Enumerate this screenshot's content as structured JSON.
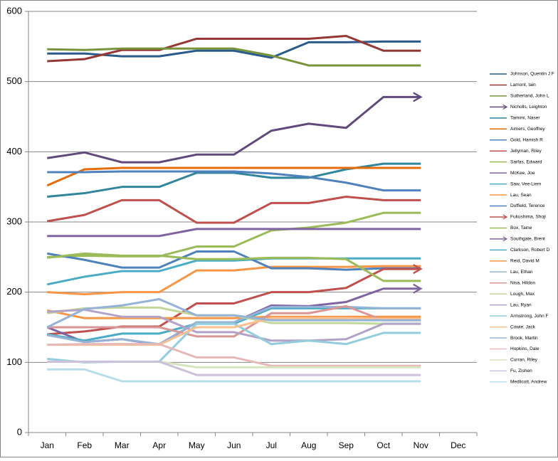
{
  "chart_data": {
    "type": "line",
    "categories": [
      "Jan",
      "Feb",
      "Mar",
      "Apr",
      "May",
      "Jun",
      "Jul",
      "Aug",
      "Sep",
      "Oct",
      "Nov",
      "Dec"
    ],
    "ylim": [
      0,
      600
    ],
    "yticks": [
      0,
      100,
      200,
      300,
      400,
      500,
      600
    ],
    "grid": true,
    "legend": "right",
    "series": [
      {
        "name": "Johnson, Quentin J F",
        "color": "#2a5b8c",
        "values": [
          540,
          540,
          536,
          536,
          544,
          544,
          534,
          556,
          556,
          557,
          557,
          null
        ]
      },
      {
        "name": "Lamont, Iain",
        "color": "#953735",
        "values": [
          529,
          532,
          545,
          545,
          561,
          561,
          561,
          561,
          565,
          544,
          544,
          null
        ]
      },
      {
        "name": "Sutherland, John L",
        "color": "#77933c",
        "values": [
          546,
          545,
          547,
          547,
          547,
          547,
          537,
          523,
          523,
          523,
          523,
          null
        ]
      },
      {
        "name": "Nicholls, Leighton",
        "color": "#604a7b",
        "marker_end": "arrow",
        "values": [
          391,
          399,
          385,
          385,
          396,
          396,
          430,
          440,
          434,
          478,
          478,
          null
        ]
      },
      {
        "name": "Tamimi, Naser",
        "color": "#31859c",
        "values": [
          336,
          341,
          350,
          350,
          370,
          370,
          363,
          363,
          375,
          383,
          383,
          null
        ]
      },
      {
        "name": "Aimers, Geoffrey",
        "color": "#e46c0a",
        "values": [
          352,
          375,
          377,
          377,
          377,
          377,
          377,
          377,
          377,
          377,
          377,
          null
        ]
      },
      {
        "name": "Gold, Hamish R",
        "color": "#4f81bd",
        "values": [
          371,
          371,
          372,
          372,
          372,
          372,
          369,
          364,
          356,
          345,
          345,
          null
        ]
      },
      {
        "name": "Jellyman, Riley",
        "color": "#c0504d",
        "values": [
          301,
          310,
          331,
          331,
          299,
          299,
          327,
          327,
          336,
          331,
          331,
          null
        ]
      },
      {
        "name": "Sarfas, Edward",
        "color": "#9bbb59",
        "values": [
          250,
          252,
          251,
          251,
          265,
          265,
          288,
          292,
          299,
          313,
          313,
          null
        ]
      },
      {
        "name": "McKee, Joe",
        "color": "#8064a2",
        "values": [
          280,
          280,
          280,
          280,
          290,
          290,
          290,
          290,
          290,
          290,
          290,
          null
        ]
      },
      {
        "name": "Saw, Vee-Liem",
        "color": "#4bacc6",
        "values": [
          211,
          222,
          230,
          230,
          245,
          245,
          248,
          248,
          248,
          248,
          248,
          null
        ]
      },
      {
        "name": "Lau, Sean",
        "color": "#f79646",
        "values": [
          200,
          197,
          200,
          200,
          231,
          231,
          236,
          236,
          236,
          237,
          237,
          null
        ]
      },
      {
        "name": "Duffield, Terence",
        "color": "#4f81bd",
        "values": [
          255,
          246,
          235,
          235,
          258,
          258,
          234,
          234,
          232,
          234,
          234,
          null
        ]
      },
      {
        "name": "Fukushima, Shoji",
        "color": "#c0504d",
        "marker_end": "arrow",
        "values": [
          140,
          144,
          151,
          151,
          184,
          184,
          200,
          200,
          206,
          233,
          233,
          null
        ]
      },
      {
        "name": "Box, Taine",
        "color": "#9bbb59",
        "values": [
          249,
          255,
          252,
          252,
          247,
          247,
          249,
          249,
          247,
          216,
          216,
          null
        ]
      },
      {
        "name": "Southgate, Brent",
        "color": "#8064a2",
        "marker_end": "arrow",
        "values": [
          150,
          129,
          133,
          125,
          157,
          157,
          181,
          180,
          186,
          205,
          205,
          null
        ]
      },
      {
        "name": "Clarkson, Robert D",
        "color": "#4bacc6",
        "values": [
          140,
          131,
          141,
          141,
          155,
          155,
          177,
          177,
          177,
          177,
          177,
          null
        ]
      },
      {
        "name": "Reid, David M",
        "color": "#f79646",
        "values": [
          174,
          163,
          163,
          163,
          163,
          163,
          165,
          165,
          165,
          165,
          165,
          null
        ]
      },
      {
        "name": "Lau, Ethan",
        "color": "#95b3d7",
        "values": [
          139,
          129,
          133,
          126,
          157,
          157,
          179,
          179,
          179,
          177,
          177,
          null
        ]
      },
      {
        "name": "Nisa, Hildon",
        "color": "#d99694",
        "values": [
          150,
          150,
          150,
          150,
          137,
          137,
          170,
          170,
          180,
          160,
          160,
          null
        ]
      },
      {
        "name": "Lough, Max",
        "color": "#c3d69b",
        "values": [
          170,
          177,
          178,
          178,
          167,
          167,
          156,
          156,
          156,
          155,
          155,
          null
        ]
      },
      {
        "name": "Lau, Ryan",
        "color": "#b3a2c7",
        "values": [
          172,
          175,
          165,
          165,
          143,
          143,
          131,
          131,
          133,
          155,
          155,
          null
        ]
      },
      {
        "name": "Armstrong, John F",
        "color": "#93cddd",
        "values": [
          105,
          100,
          101,
          101,
          155,
          155,
          126,
          131,
          126,
          142,
          142,
          null
        ]
      },
      {
        "name": "Cowie, Jack",
        "color": "#fac090",
        "values": [
          125,
          125,
          125,
          125,
          150,
          150,
          163,
          163,
          163,
          162,
          162,
          null
        ]
      },
      {
        "name": "Brook, Martin",
        "color": "#95b3d7",
        "values": [
          150,
          176,
          181,
          190,
          167,
          167,
          160,
          160,
          160,
          160,
          160,
          null
        ]
      },
      {
        "name": "Hopkins, Dale",
        "color": "#e6b9b8",
        "values": [
          125,
          126,
          126,
          126,
          107,
          107,
          95,
          95,
          95,
          95,
          95,
          null
        ]
      },
      {
        "name": "Curran, Riley",
        "color": "#d7e4bd",
        "values": [
          101,
          101,
          101,
          101,
          93,
          93,
          93,
          93,
          93,
          93,
          93,
          null
        ]
      },
      {
        "name": "Fu, Zishen",
        "color": "#ccc1da",
        "values": [
          101,
          101,
          101,
          101,
          82,
          82,
          82,
          82,
          82,
          82,
          82,
          null
        ]
      },
      {
        "name": "Medlicott, Andrew",
        "color": "#b7dee8",
        "values": [
          90,
          90,
          73,
          73,
          73,
          73,
          73,
          73,
          73,
          73,
          73,
          null
        ]
      }
    ]
  }
}
